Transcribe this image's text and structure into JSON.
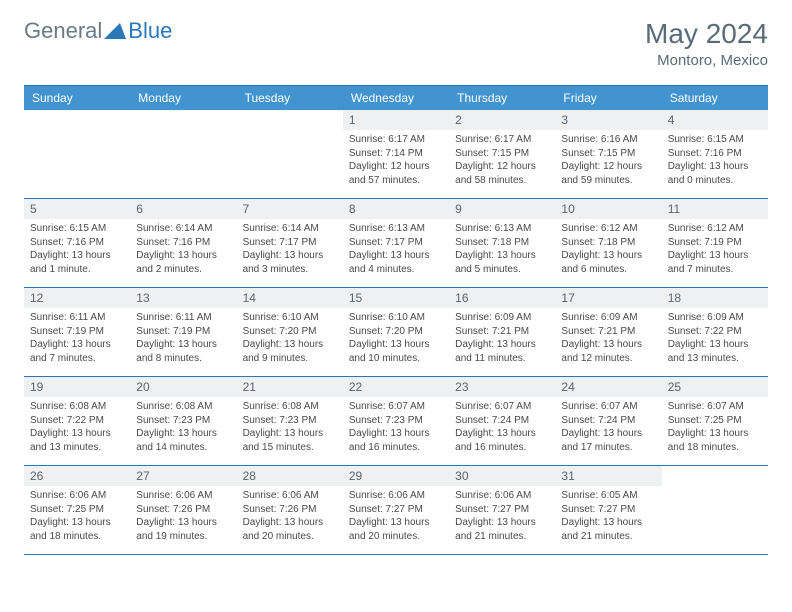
{
  "logo": {
    "part1": "General",
    "part2": "Blue"
  },
  "title": "May 2024",
  "location": "Montoro, Mexico",
  "colors": {
    "header_bg": "#4194d0",
    "border": "#2a78b8",
    "day_num_bg": "#eef0f2",
    "text_muted": "#5a6b78",
    "text_body": "#4a4a4a"
  },
  "day_headers": [
    "Sunday",
    "Monday",
    "Tuesday",
    "Wednesday",
    "Thursday",
    "Friday",
    "Saturday"
  ],
  "weeks": [
    [
      {
        "n": "",
        "lines": []
      },
      {
        "n": "",
        "lines": []
      },
      {
        "n": "",
        "lines": []
      },
      {
        "n": "1",
        "lines": [
          "Sunrise: 6:17 AM",
          "Sunset: 7:14 PM",
          "Daylight: 12 hours",
          "and 57 minutes."
        ]
      },
      {
        "n": "2",
        "lines": [
          "Sunrise: 6:17 AM",
          "Sunset: 7:15 PM",
          "Daylight: 12 hours",
          "and 58 minutes."
        ]
      },
      {
        "n": "3",
        "lines": [
          "Sunrise: 6:16 AM",
          "Sunset: 7:15 PM",
          "Daylight: 12 hours",
          "and 59 minutes."
        ]
      },
      {
        "n": "4",
        "lines": [
          "Sunrise: 6:15 AM",
          "Sunset: 7:16 PM",
          "Daylight: 13 hours",
          "and 0 minutes."
        ]
      }
    ],
    [
      {
        "n": "5",
        "lines": [
          "Sunrise: 6:15 AM",
          "Sunset: 7:16 PM",
          "Daylight: 13 hours",
          "and 1 minute."
        ]
      },
      {
        "n": "6",
        "lines": [
          "Sunrise: 6:14 AM",
          "Sunset: 7:16 PM",
          "Daylight: 13 hours",
          "and 2 minutes."
        ]
      },
      {
        "n": "7",
        "lines": [
          "Sunrise: 6:14 AM",
          "Sunset: 7:17 PM",
          "Daylight: 13 hours",
          "and 3 minutes."
        ]
      },
      {
        "n": "8",
        "lines": [
          "Sunrise: 6:13 AM",
          "Sunset: 7:17 PM",
          "Daylight: 13 hours",
          "and 4 minutes."
        ]
      },
      {
        "n": "9",
        "lines": [
          "Sunrise: 6:13 AM",
          "Sunset: 7:18 PM",
          "Daylight: 13 hours",
          "and 5 minutes."
        ]
      },
      {
        "n": "10",
        "lines": [
          "Sunrise: 6:12 AM",
          "Sunset: 7:18 PM",
          "Daylight: 13 hours",
          "and 6 minutes."
        ]
      },
      {
        "n": "11",
        "lines": [
          "Sunrise: 6:12 AM",
          "Sunset: 7:19 PM",
          "Daylight: 13 hours",
          "and 7 minutes."
        ]
      }
    ],
    [
      {
        "n": "12",
        "lines": [
          "Sunrise: 6:11 AM",
          "Sunset: 7:19 PM",
          "Daylight: 13 hours",
          "and 7 minutes."
        ]
      },
      {
        "n": "13",
        "lines": [
          "Sunrise: 6:11 AM",
          "Sunset: 7:19 PM",
          "Daylight: 13 hours",
          "and 8 minutes."
        ]
      },
      {
        "n": "14",
        "lines": [
          "Sunrise: 6:10 AM",
          "Sunset: 7:20 PM",
          "Daylight: 13 hours",
          "and 9 minutes."
        ]
      },
      {
        "n": "15",
        "lines": [
          "Sunrise: 6:10 AM",
          "Sunset: 7:20 PM",
          "Daylight: 13 hours",
          "and 10 minutes."
        ]
      },
      {
        "n": "16",
        "lines": [
          "Sunrise: 6:09 AM",
          "Sunset: 7:21 PM",
          "Daylight: 13 hours",
          "and 11 minutes."
        ]
      },
      {
        "n": "17",
        "lines": [
          "Sunrise: 6:09 AM",
          "Sunset: 7:21 PM",
          "Daylight: 13 hours",
          "and 12 minutes."
        ]
      },
      {
        "n": "18",
        "lines": [
          "Sunrise: 6:09 AM",
          "Sunset: 7:22 PM",
          "Daylight: 13 hours",
          "and 13 minutes."
        ]
      }
    ],
    [
      {
        "n": "19",
        "lines": [
          "Sunrise: 6:08 AM",
          "Sunset: 7:22 PM",
          "Daylight: 13 hours",
          "and 13 minutes."
        ]
      },
      {
        "n": "20",
        "lines": [
          "Sunrise: 6:08 AM",
          "Sunset: 7:23 PM",
          "Daylight: 13 hours",
          "and 14 minutes."
        ]
      },
      {
        "n": "21",
        "lines": [
          "Sunrise: 6:08 AM",
          "Sunset: 7:23 PM",
          "Daylight: 13 hours",
          "and 15 minutes."
        ]
      },
      {
        "n": "22",
        "lines": [
          "Sunrise: 6:07 AM",
          "Sunset: 7:23 PM",
          "Daylight: 13 hours",
          "and 16 minutes."
        ]
      },
      {
        "n": "23",
        "lines": [
          "Sunrise: 6:07 AM",
          "Sunset: 7:24 PM",
          "Daylight: 13 hours",
          "and 16 minutes."
        ]
      },
      {
        "n": "24",
        "lines": [
          "Sunrise: 6:07 AM",
          "Sunset: 7:24 PM",
          "Daylight: 13 hours",
          "and 17 minutes."
        ]
      },
      {
        "n": "25",
        "lines": [
          "Sunrise: 6:07 AM",
          "Sunset: 7:25 PM",
          "Daylight: 13 hours",
          "and 18 minutes."
        ]
      }
    ],
    [
      {
        "n": "26",
        "lines": [
          "Sunrise: 6:06 AM",
          "Sunset: 7:25 PM",
          "Daylight: 13 hours",
          "and 18 minutes."
        ]
      },
      {
        "n": "27",
        "lines": [
          "Sunrise: 6:06 AM",
          "Sunset: 7:26 PM",
          "Daylight: 13 hours",
          "and 19 minutes."
        ]
      },
      {
        "n": "28",
        "lines": [
          "Sunrise: 6:06 AM",
          "Sunset: 7:26 PM",
          "Daylight: 13 hours",
          "and 20 minutes."
        ]
      },
      {
        "n": "29",
        "lines": [
          "Sunrise: 6:06 AM",
          "Sunset: 7:27 PM",
          "Daylight: 13 hours",
          "and 20 minutes."
        ]
      },
      {
        "n": "30",
        "lines": [
          "Sunrise: 6:06 AM",
          "Sunset: 7:27 PM",
          "Daylight: 13 hours",
          "and 21 minutes."
        ]
      },
      {
        "n": "31",
        "lines": [
          "Sunrise: 6:05 AM",
          "Sunset: 7:27 PM",
          "Daylight: 13 hours",
          "and 21 minutes."
        ]
      },
      {
        "n": "",
        "lines": []
      }
    ]
  ]
}
